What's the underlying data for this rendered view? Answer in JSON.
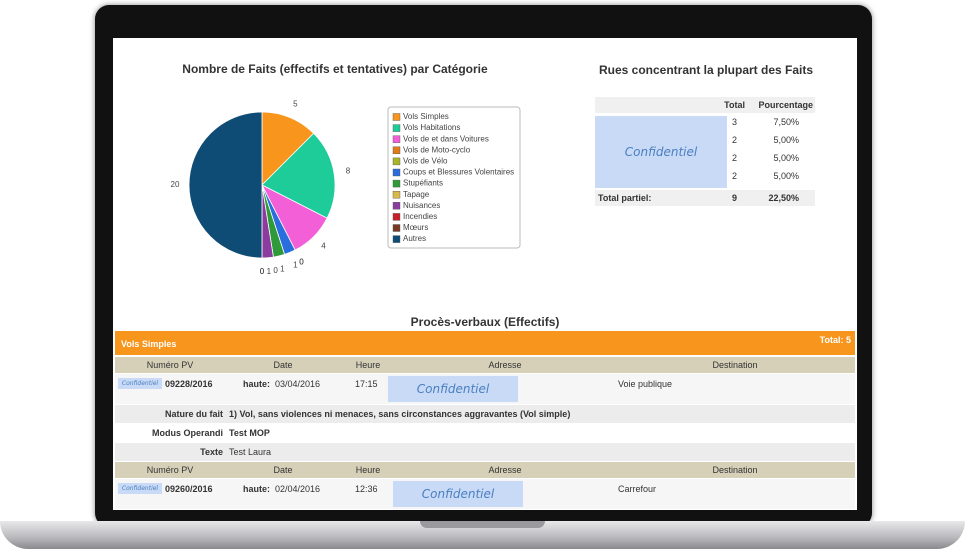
{
  "chart_data": {
    "type": "pie",
    "title": "Nombre de Faits (effectifs et tentatives) par Catégorie",
    "categories": [
      "Vols Simples",
      "Vols Habitations",
      "Vols de et dans Voitures",
      "Vols de Moto-cyclo",
      "Vols de Vélo",
      "Coups et Blessures Volentaires",
      "Stupéfiants",
      "Tapage",
      "Nuisances",
      "Incendies",
      "Mœurs",
      "Autres"
    ],
    "values": [
      5,
      8,
      4,
      0,
      0,
      1,
      1,
      0,
      1,
      0,
      0,
      20
    ],
    "colors": [
      "#f7951d",
      "#1dcc98",
      "#f25fd7",
      "#e07b18",
      "#a8b52a",
      "#2a6ddc",
      "#2f9a3a",
      "#d9b84a",
      "#8b3c9e",
      "#c8202a",
      "#7a3a22",
      "#0f4c75"
    ]
  },
  "streets_table": {
    "title": "Rues concentrant la plupart des Faits",
    "headers": [
      "Total",
      "Pourcentage"
    ],
    "confidential": "Confidentiel",
    "rows": [
      {
        "total": 3,
        "percent": "7,50%"
      },
      {
        "total": 2,
        "percent": "5,00%"
      },
      {
        "total": 2,
        "percent": "5,00%"
      },
      {
        "total": 2,
        "percent": "5,00%"
      }
    ],
    "footer": {
      "label": "Total partiel:",
      "total": 9,
      "percent": "22,50%"
    }
  },
  "records": {
    "title": "Procès-verbaux (Effectifs)",
    "group": "Vols Simples",
    "group_total": "Total: 5",
    "columns": [
      "Numéro PV",
      "Date",
      "Heure",
      "Adresse",
      "Destination"
    ],
    "items": [
      {
        "tag": "Confidentiel",
        "pv": "09228/2016",
        "label": "haute:",
        "date": "03/04/2016",
        "time": "17:15",
        "address": "Confidentiel",
        "destination": "Voie publique",
        "details": [
          {
            "label": "Nature du fait",
            "value": "1) Vol, sans violences ni menaces, sans circonstances aggravantes (Vol simple)"
          },
          {
            "label": "Modus Operandi",
            "value": "Test MOP"
          },
          {
            "label": "Texte",
            "value": "Test Laura"
          }
        ]
      },
      {
        "tag": "Confidentiel",
        "pv": "09260/2016",
        "label": "haute:",
        "date": "02/04/2016",
        "time": "12:36",
        "address": "Confidentiel",
        "destination": "Carrefour",
        "details": []
      }
    ]
  }
}
